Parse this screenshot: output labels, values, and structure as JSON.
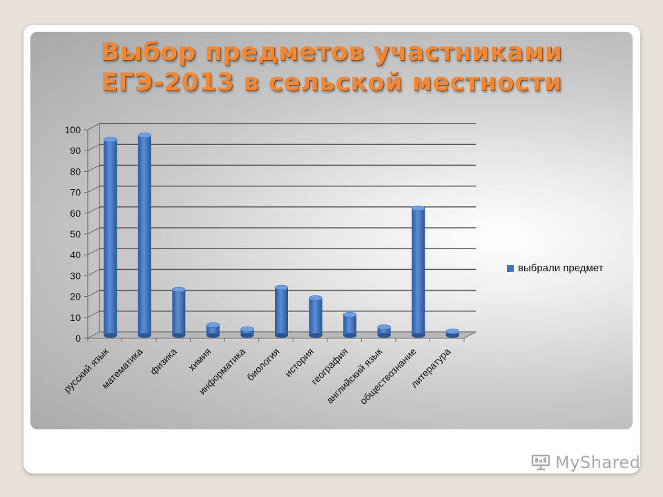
{
  "slide": {
    "title_line1": "Выбор предметов участниками",
    "title_line2": "ЕГЭ-2013 в сельской местности"
  },
  "chart_data": {
    "type": "bar",
    "title": "",
    "categories": [
      "русский язык",
      "математика",
      "физика",
      "химия",
      "информатика",
      "биология",
      "история",
      "география",
      "английский язык",
      "обществознание",
      "литература"
    ],
    "series": [
      {
        "name": "выбрали предмет",
        "values": [
          94,
          96,
          22,
          5,
          3,
          23,
          18,
          10,
          4,
          61,
          2
        ],
        "color": "#3f74bf"
      }
    ],
    "yticks": [
      0,
      10,
      20,
      30,
      40,
      50,
      60,
      70,
      80,
      90,
      100
    ],
    "ylim": [
      0,
      100
    ],
    "grid": true,
    "legend_position": "right"
  },
  "watermark": {
    "text": "MyShared",
    "icon": "slideshow-icon"
  }
}
